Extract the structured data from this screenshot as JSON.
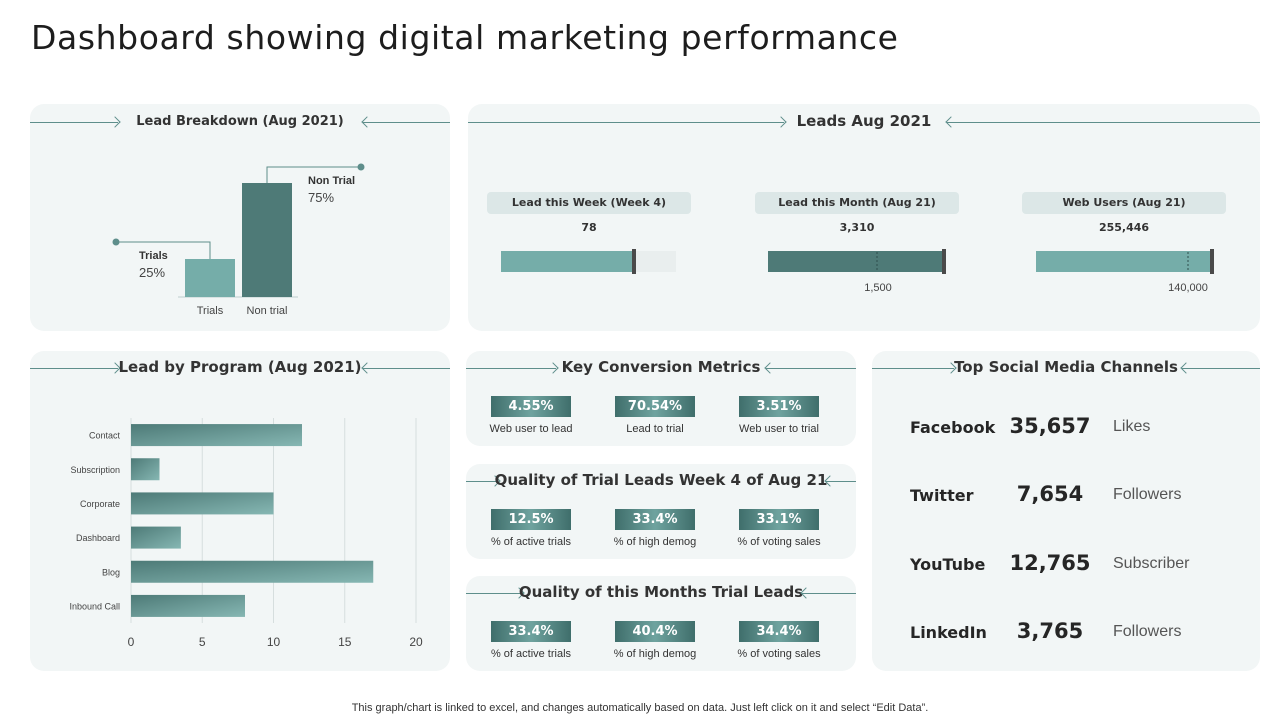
{
  "page": {
    "title": "Dashboard showing digital marketing performance",
    "footnote": "This graph/chart is linked to excel,  and changes automatically based on data. Just left click on it and select “Edit Data”."
  },
  "colors": {
    "teal_light": "#75ada9",
    "teal_dark": "#4e7a77",
    "panel_bg": "#f2f6f6",
    "line": "#5e8e8b"
  },
  "lead_breakdown": {
    "title": "Lead Breakdown (Aug 2021)",
    "chart_data": {
      "type": "bar",
      "categories": [
        "Trials",
        "Non trial"
      ],
      "values": [
        25,
        75
      ],
      "data_labels": [
        {
          "name": "Trials",
          "value": "25%"
        },
        {
          "name": "Non Trial",
          "value": "75%"
        }
      ]
    }
  },
  "leads_aug": {
    "title": "Leads Aug 2021",
    "kpis": [
      {
        "label": "Lead this  Week (Week 4)",
        "value": "78",
        "progress": 0.76,
        "target": null,
        "target_label": ""
      },
      {
        "label": "Lead this  Month (Aug 21)",
        "value": "3,310",
        "progress": 1.0,
        "target": 1500,
        "target_label": "1,500"
      },
      {
        "label": "Web Users (Aug 21)",
        "value": "255,446",
        "progress": 1.0,
        "target": 140000,
        "target_label": "140,000"
      }
    ]
  },
  "lead_by_program": {
    "title": "Lead by Program (Aug 2021)",
    "chart_data": {
      "type": "bar",
      "orientation": "horizontal",
      "categories": [
        "Contact",
        "Subscription",
        "Corporate",
        "Dashboard",
        "Blog",
        "Inbound Call"
      ],
      "values": [
        12,
        2,
        10,
        3.5,
        17,
        8
      ],
      "xlim": [
        0,
        20
      ],
      "xticks": [
        0,
        5,
        10,
        15,
        20
      ],
      "grid": true
    }
  },
  "key_conversion": {
    "title": "Key Conversion Metrics",
    "metrics": [
      {
        "value": "4.55%",
        "label": "Web user to lead"
      },
      {
        "value": "70.54%",
        "label": "Lead to trial"
      },
      {
        "value": "3.51%",
        "label": "Web user to trial"
      }
    ]
  },
  "quality_week": {
    "title": "Quality of Trial Leads Week 4 of Aug 21",
    "metrics": [
      {
        "value": "12.5%",
        "label": "% of active trials"
      },
      {
        "value": "33.4%",
        "label": "% of high demog"
      },
      {
        "value": "33.1%",
        "label": "% of voting sales"
      }
    ]
  },
  "quality_month": {
    "title": "Quality of this Months Trial Leads",
    "metrics": [
      {
        "value": "33.4%",
        "label": "% of active trials"
      },
      {
        "value": "40.4%",
        "label": "% of high demog"
      },
      {
        "value": "34.4%",
        "label": "% of voting sales"
      }
    ]
  },
  "social": {
    "title": "Top Social Media Channels",
    "channels": [
      {
        "name": "Facebook",
        "value": "35,657",
        "unit": "Likes"
      },
      {
        "name": "Twitter",
        "value": "7,654",
        "unit": "Followers"
      },
      {
        "name": "YouTube",
        "value": "12,765",
        "unit": "Subscriber"
      },
      {
        "name": "LinkedIn",
        "value": "3,765",
        "unit": "Followers"
      }
    ]
  }
}
